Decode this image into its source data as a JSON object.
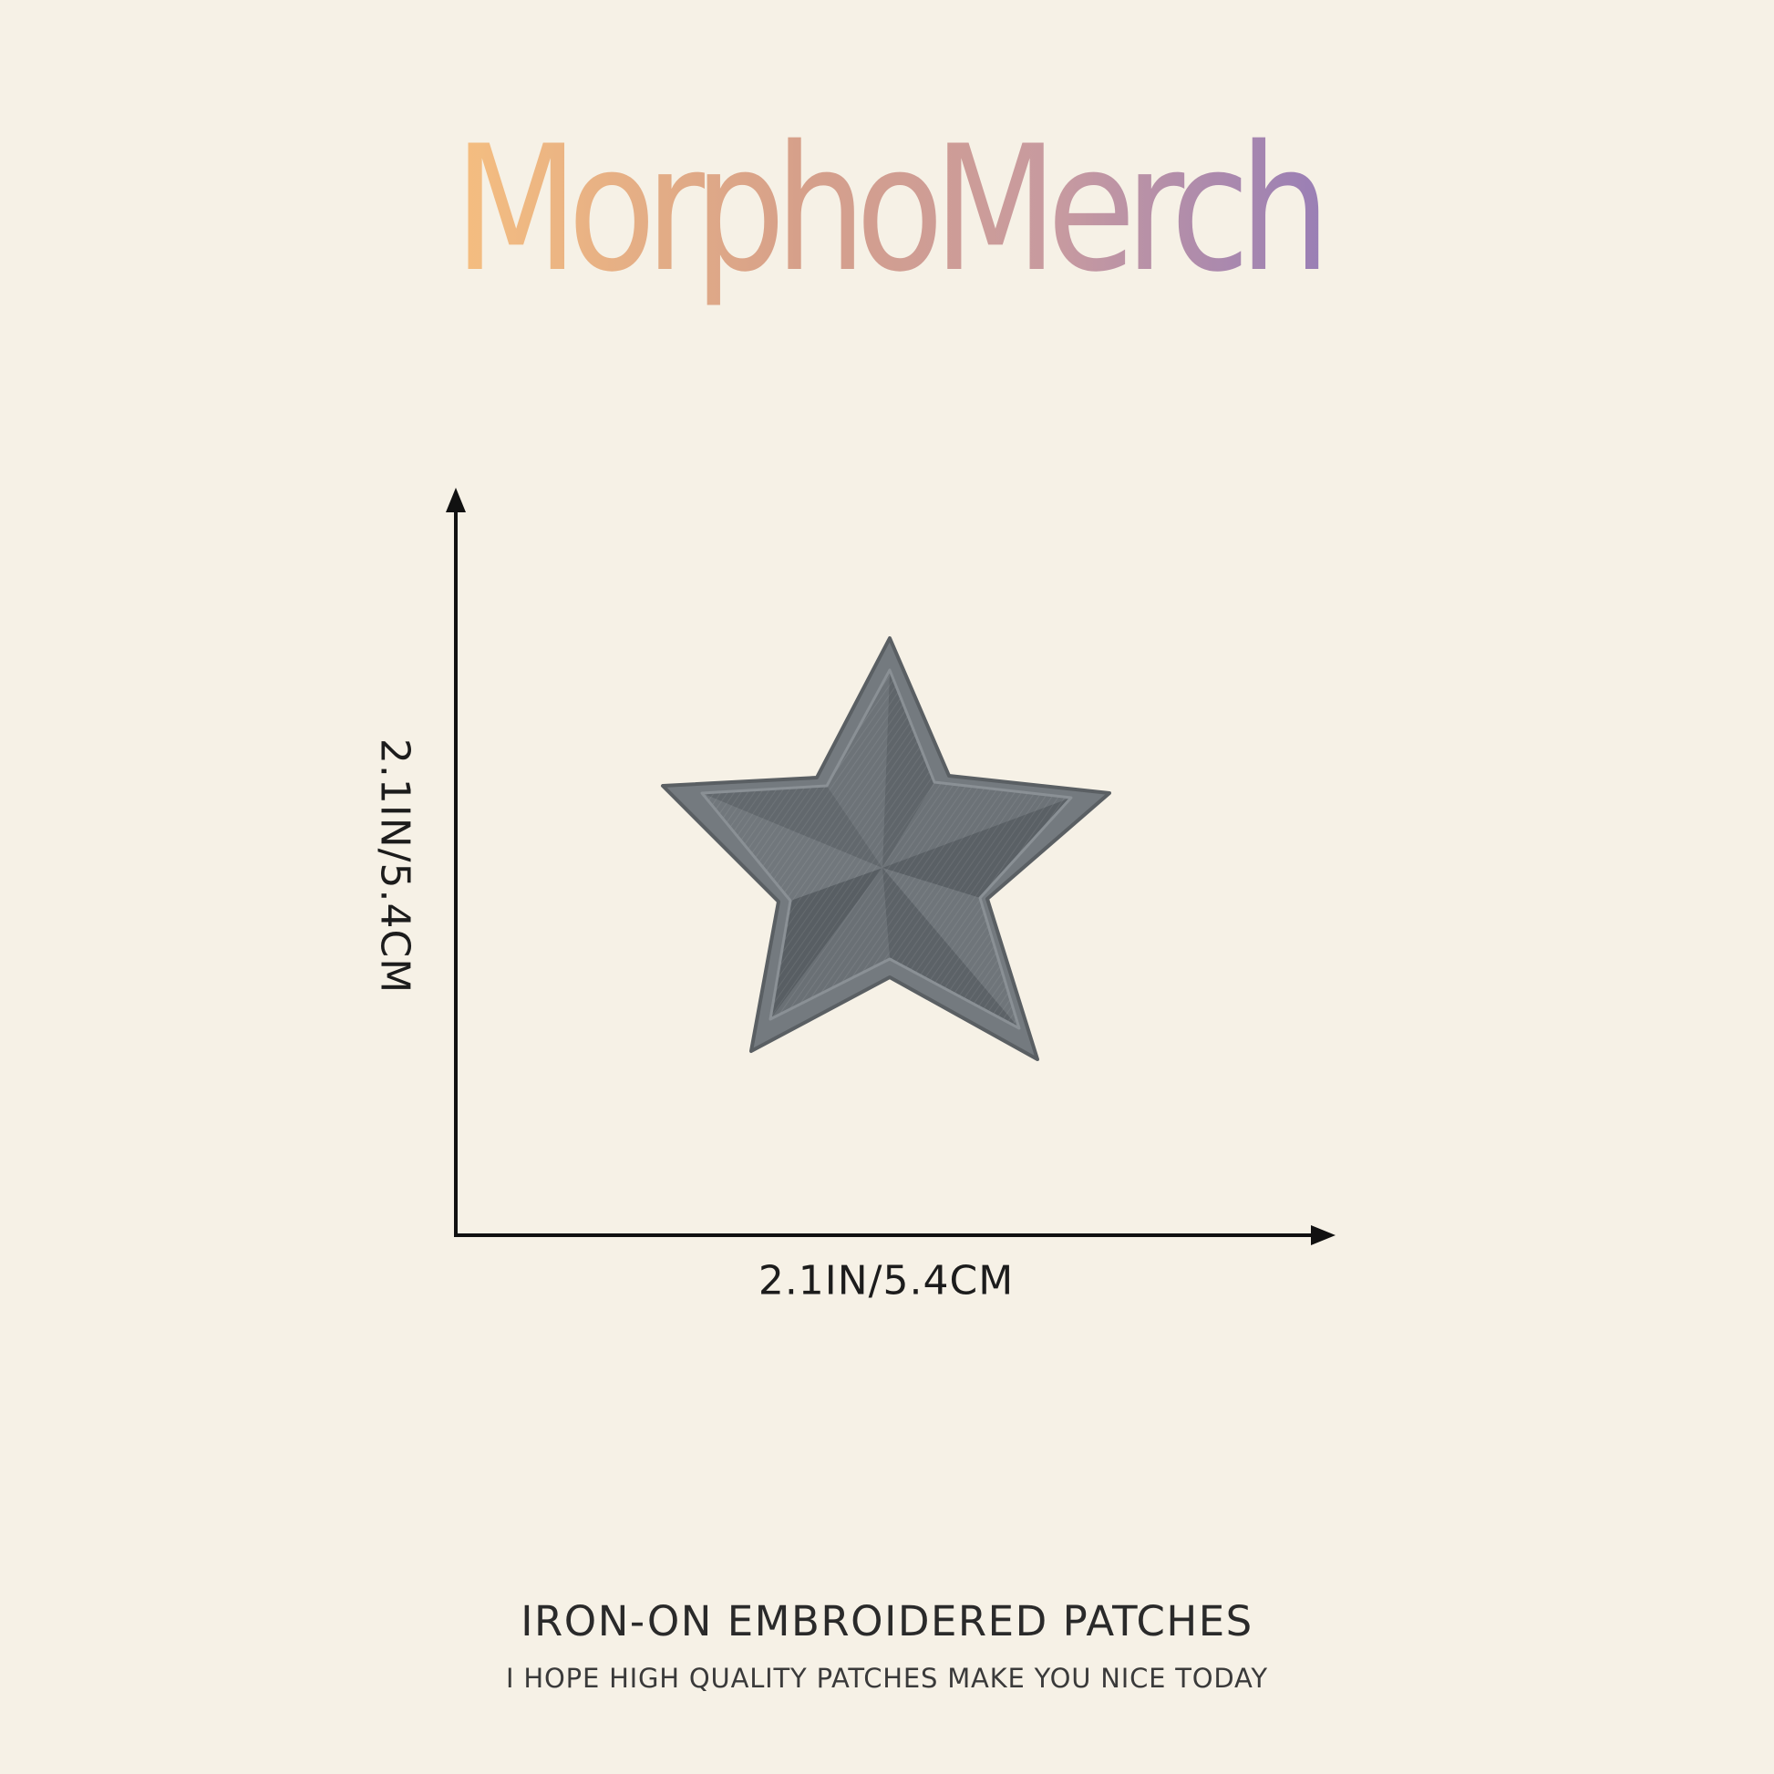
{
  "brand": {
    "name": "MorphoMerch",
    "gradient_colors": [
      "#f5be80",
      "#d6a08a",
      "#c79aa0",
      "#9a7fb5"
    ]
  },
  "product_image": {
    "icon": "star-patch-icon",
    "color": "#6e7479"
  },
  "dimensions": {
    "height_label": "2.1IN/5.4CM",
    "width_label": "2.1IN/5.4CM"
  },
  "footer": {
    "title": "IRON-ON EMBROIDERED PATCHES",
    "subtitle": "I HOPE HIGH QUALITY PATCHES MAKE YOU NICE TODAY"
  },
  "colors": {
    "background": "#f6f1e6",
    "text": "#1c1c1c"
  }
}
